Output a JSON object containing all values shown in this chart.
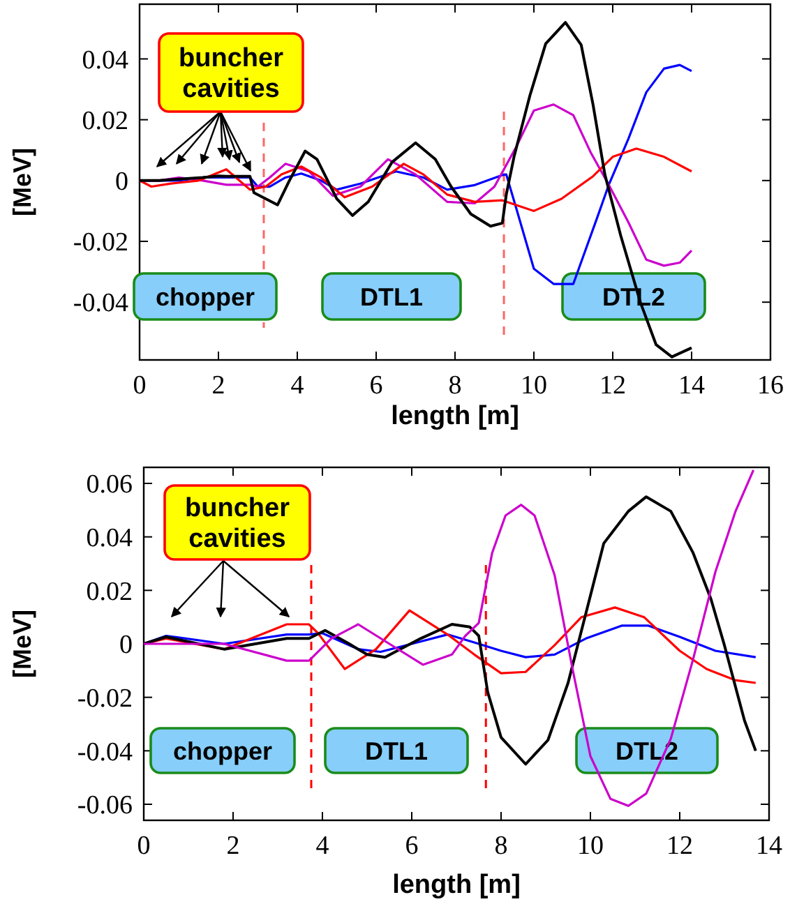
{
  "chart_data": [
    {
      "type": "line",
      "xlabel": "length [m]",
      "ylabel": "[MeV]",
      "xlim": [
        0,
        16
      ],
      "xticks": [
        0,
        2,
        4,
        6,
        8,
        10,
        12,
        14,
        16
      ],
      "ylim": [
        -0.059,
        0.058
      ],
      "yticks": [
        -0.04,
        -0.02,
        0,
        0.02,
        0.04
      ],
      "annotations": [
        {
          "text": "buncher cavities",
          "x": 2.0,
          "y": 0.0014
        },
        "chopper",
        "DTL1",
        "DTL2"
      ],
      "ref_lines": [
        {
          "axis": "x",
          "value": 3.15,
          "color": "#ff6666",
          "line_style": "dashed"
        },
        {
          "axis": "x",
          "value": 9.24,
          "color": "#ff6666",
          "line_style": "dashed"
        }
      ],
      "series": [
        {
          "color": "#0000ff",
          "x": [
            0,
            0.5,
            1.0,
            1.6,
            2.2,
            2.8,
            3.0,
            3.3,
            3.7,
            4.1,
            4.6,
            5.0,
            5.6,
            6.5,
            7.2,
            7.8,
            8.5,
            9.2,
            9.3,
            9.55,
            10.0,
            10.5,
            11.0,
            11.6,
            11.9,
            12.4,
            12.85,
            13.3,
            13.7,
            14.0
          ],
          "values": [
            0,
            0,
            0,
            0.001,
            0.001,
            0.001,
            -0.002,
            -0.002,
            0.001,
            0.0023,
            0,
            -0.003,
            -0.001,
            0.003,
            0.001,
            -0.003,
            -0.0015,
            0.0018,
            0.002,
            -0.009,
            -0.029,
            -0.034,
            -0.034,
            -0.0124,
            -0.0014,
            0.0138,
            0.029,
            0.0368,
            0.038,
            0.036
          ]
        },
        {
          "color": "#cc00cc",
          "x": [
            0,
            0.5,
            1.0,
            1.6,
            2.2,
            2.8,
            3.0,
            3.3,
            3.7,
            4.3,
            4.9,
            5.6,
            6.3,
            7.0,
            7.8,
            8.5,
            9.0,
            9.55,
            10.0,
            10.5,
            11.0,
            11.45,
            11.9,
            12.4,
            12.85,
            13.3,
            13.7,
            14.0
          ],
          "values": [
            0,
            0,
            0.001,
            0,
            -0.0014,
            -0.0014,
            -0.002,
            0.001,
            0.0055,
            0.003,
            -0.005,
            -0.002,
            0.007,
            0.002,
            -0.007,
            -0.0075,
            -0.002,
            0.011,
            0.023,
            0.025,
            0.0215,
            0.009,
            -0.0014,
            -0.0138,
            -0.026,
            -0.028,
            -0.027,
            -0.023
          ]
        },
        {
          "color": "#ff0000",
          "x": [
            0,
            0.3,
            0.8,
            1.5,
            2.2,
            2.8,
            3.2,
            3.6,
            4.1,
            4.6,
            5.2,
            5.9,
            6.7,
            7.2,
            7.8,
            8.5,
            9.2,
            10.0,
            10.7,
            11.5,
            12.0,
            12.6,
            13.3,
            14.0
          ],
          "values": [
            0,
            -0.002,
            -0.001,
            0,
            0.0037,
            -0.003,
            -0.002,
            0.002,
            0.0046,
            0.001,
            -0.0055,
            -0.002,
            0.0055,
            0.002,
            -0.0046,
            -0.007,
            -0.0065,
            -0.01,
            -0.006,
            0.0014,
            0.0078,
            0.0105,
            0.0078,
            0.003
          ]
        },
        {
          "color": "#000000",
          "x": [
            0,
            0.5,
            1.0,
            1.6,
            2.0,
            2.2,
            2.8,
            2.9,
            3.2,
            3.5,
            3.8,
            4.2,
            4.5,
            5.0,
            5.4,
            5.8,
            6.4,
            7.0,
            7.5,
            7.9,
            8.4,
            8.9,
            9.2,
            9.3,
            9.5,
            9.9,
            10.3,
            10.8,
            11.2,
            11.5,
            11.8,
            12.2,
            12.7,
            13.1,
            13.5,
            14.0
          ],
          "values": [
            0,
            0,
            0.0005,
            0.001,
            0.0015,
            0.0014,
            0.0014,
            -0.004,
            -0.006,
            -0.008,
            0,
            0.0097,
            0.007,
            -0.006,
            -0.0115,
            -0.007,
            0.006,
            0.0124,
            0.007,
            -0.002,
            -0.011,
            -0.015,
            -0.014,
            -0.0046,
            0.008,
            0.028,
            0.045,
            0.052,
            0.0446,
            0.025,
            0.002,
            -0.018,
            -0.04,
            -0.054,
            -0.058,
            -0.055
          ]
        }
      ]
    },
    {
      "type": "line",
      "xlabel": "length [m]",
      "ylabel": "[MeV]",
      "xlim": [
        0,
        14
      ],
      "xticks": [
        0,
        2,
        4,
        6,
        8,
        10,
        12,
        14
      ],
      "ylim": [
        -0.066,
        0.066
      ],
      "yticks": [
        -0.06,
        -0.04,
        -0.02,
        0,
        0.02,
        0.04,
        0.06
      ],
      "annotations": [
        "buncher cavities",
        "chopper",
        "DTL1",
        "DTL2"
      ],
      "ref_lines": [
        {
          "axis": "x",
          "value": 3.75,
          "color": "#ff0000",
          "line_style": "dashed"
        },
        {
          "axis": "x",
          "value": 7.66,
          "color": "#ff0000",
          "line_style": "dashed"
        }
      ],
      "series": [
        {
          "color": "#0000ff",
          "x": [
            0,
            0.5,
            1.8,
            3.2,
            3.7,
            4.0,
            4.8,
            5.3,
            6.0,
            6.8,
            7.4,
            8.0,
            8.55,
            9.2,
            9.9,
            10.7,
            11.3,
            12.0,
            12.8,
            13.7
          ],
          "values": [
            0,
            0.003,
            0,
            0.0035,
            0.0035,
            0.004,
            -0.002,
            -0.003,
            0,
            0.0035,
            0.0005,
            -0.0026,
            -0.005,
            -0.004,
            0.002,
            0.0068,
            0.0068,
            0.0026,
            -0.0026,
            -0.005
          ]
        },
        {
          "color": "#ff0000",
          "x": [
            0,
            0.5,
            1.8,
            3.2,
            3.7,
            3.9,
            4.5,
            5.2,
            5.95,
            6.8,
            7.4,
            8.0,
            8.55,
            9.2,
            9.8,
            10.55,
            11.2,
            12.0,
            12.6,
            13.25,
            13.7
          ],
          "values": [
            0,
            0.002,
            -0.002,
            0.0073,
            0.0073,
            0.004,
            -0.0094,
            -0.002,
            0.0125,
            0.0035,
            -0.004,
            -0.011,
            -0.0105,
            -0.0005,
            0.01,
            0.0136,
            0.01,
            -0.0026,
            -0.0094,
            -0.0136,
            -0.0146
          ]
        },
        {
          "color": "#000000",
          "x": [
            0,
            0.5,
            1.8,
            3.2,
            3.7,
            4.06,
            4.6,
            5.0,
            5.4,
            6.2,
            6.9,
            7.3,
            7.5,
            7.7,
            8.0,
            8.55,
            9.05,
            9.5,
            9.9,
            10.3,
            10.85,
            11.25,
            11.8,
            12.3,
            12.7,
            13.0,
            13.45,
            13.7
          ],
          "values": [
            0,
            0.0026,
            -0.002,
            0.002,
            0.002,
            0.005,
            0,
            -0.004,
            -0.005,
            0.002,
            0.0073,
            0.0063,
            0.003,
            -0.018,
            -0.035,
            -0.045,
            -0.036,
            -0.0146,
            0.0115,
            0.0376,
            0.0496,
            0.055,
            0.0496,
            0.034,
            0.0167,
            -0.0005,
            -0.0287,
            -0.04
          ]
        },
        {
          "color": "#cc00cc",
          "x": [
            0,
            1.8,
            3.2,
            3.7,
            4.2,
            4.8,
            5.5,
            6.25,
            6.9,
            7.2,
            7.5,
            7.8,
            8.1,
            8.45,
            8.75,
            9.2,
            9.6,
            10.0,
            10.45,
            10.85,
            11.25,
            11.8,
            12.3,
            12.8,
            13.25,
            13.65
          ],
          "values": [
            0,
            0,
            -0.0063,
            -0.0063,
            0.002,
            0.0073,
            0,
            -0.0078,
            -0.004,
            0.003,
            0.0078,
            0.034,
            0.048,
            0.052,
            0.048,
            0.0256,
            -0.0094,
            -0.042,
            -0.058,
            -0.0606,
            -0.056,
            -0.0355,
            -0.0057,
            0.027,
            0.0496,
            0.065
          ]
        }
      ]
    }
  ]
}
